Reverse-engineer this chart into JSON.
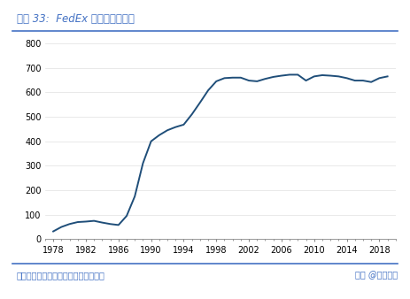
{
  "title": "图表 33:  FedEx 机队规模（架）",
  "title_color": "#4472C4",
  "footer": "资料来源：公司公告，国盛证券研究所",
  "footer_right": "头条 @未来智库",
  "footer_color": "#4472C4",
  "line_color": "#1F4E79",
  "background_color": "#FFFFFF",
  "ylim": [
    0,
    800
  ],
  "yticks": [
    0,
    100,
    200,
    300,
    400,
    500,
    600,
    700,
    800
  ],
  "xticks": [
    1978,
    1982,
    1986,
    1990,
    1994,
    1998,
    2002,
    2006,
    2010,
    2014,
    2018
  ],
  "xlim": [
    1977,
    2020
  ],
  "separator_color": "#4472C4",
  "tick_color": "#888888",
  "gridcolor": "#E0E0E0",
  "data": {
    "years": [
      1978,
      1979,
      1980,
      1981,
      1982,
      1983,
      1984,
      1985,
      1986,
      1987,
      1988,
      1989,
      1990,
      1991,
      1992,
      1993,
      1994,
      1995,
      1996,
      1997,
      1998,
      1999,
      2000,
      2001,
      2002,
      2003,
      2004,
      2005,
      2006,
      2007,
      2008,
      2009,
      2010,
      2011,
      2012,
      2013,
      2014,
      2015,
      2016,
      2017,
      2018,
      2019
    ],
    "values": [
      32,
      50,
      62,
      70,
      72,
      75,
      68,
      62,
      58,
      95,
      175,
      310,
      400,
      425,
      445,
      458,
      468,
      510,
      558,
      608,
      645,
      658,
      660,
      660,
      648,
      645,
      655,
      663,
      668,
      672,
      672,
      648,
      665,
      670,
      668,
      665,
      658,
      648,
      648,
      642,
      658,
      665
    ]
  }
}
